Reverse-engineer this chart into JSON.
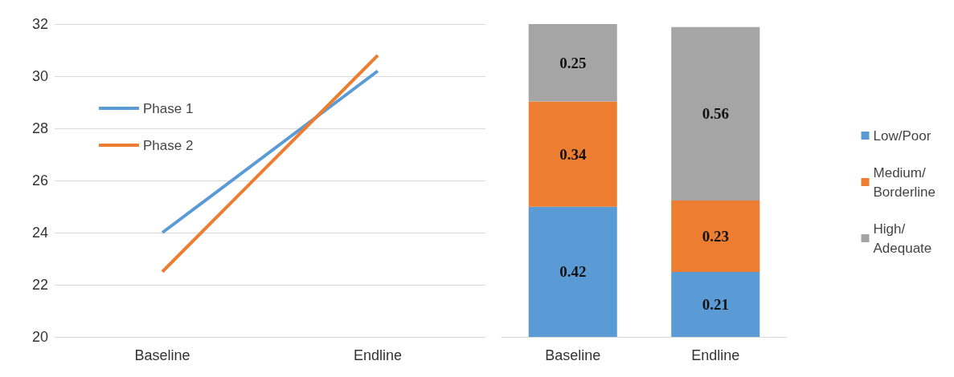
{
  "chart_data": [
    {
      "type": "line",
      "categories": [
        "Baseline",
        "Endline"
      ],
      "series": [
        {
          "name": "Phase 1",
          "color": "#5b9bd5",
          "values": [
            24,
            30.2
          ]
        },
        {
          "name": "Phase 2",
          "color": "#ed7d31",
          "values": [
            22.5,
            30.8
          ]
        }
      ],
      "ylim": [
        20,
        32
      ],
      "yticks": [
        20,
        22,
        24,
        26,
        28,
        30,
        32
      ],
      "grid": "y",
      "legend": "top left",
      "marker": "none",
      "line_style": "solid"
    },
    {
      "type": "bar",
      "stacked": true,
      "categories": [
        "Baseline",
        "Endline"
      ],
      "series": [
        {
          "name": "Low/Poor",
          "color": "#5b9bd5",
          "values": [
            0.42,
            0.21
          ]
        },
        {
          "name": "Medium/\nBorderline",
          "color": "#ed7d31",
          "values": [
            0.34,
            0.23
          ]
        },
        {
          "name": "High/\nAdequate",
          "color": "#a5a5a5",
          "values": [
            0.25,
            0.56
          ]
        }
      ],
      "data_labels": true,
      "tick_labels": "x",
      "legend": "right",
      "grid": false
    }
  ]
}
